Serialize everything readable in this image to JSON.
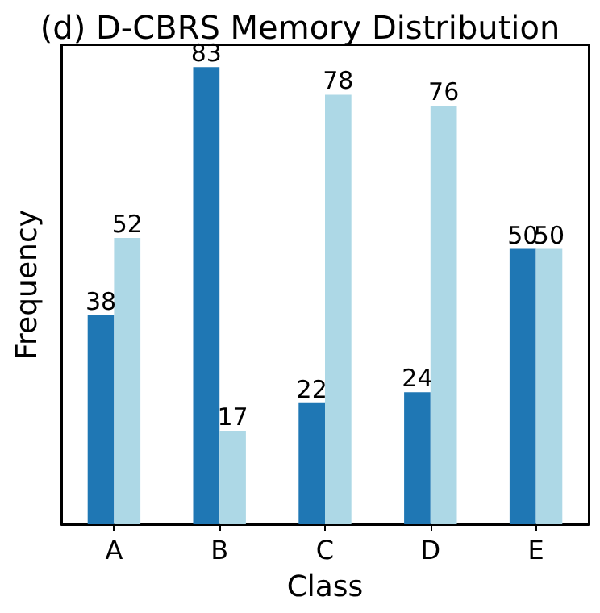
{
  "chart_data": {
    "type": "bar",
    "title": "(d) D-CBRS Memory Distribution",
    "xlabel": "Class",
    "ylabel": "Frequency",
    "categories": [
      "A",
      "B",
      "C",
      "D",
      "E"
    ],
    "series": [
      {
        "color": "#1f77b4",
        "values": [
          38,
          83,
          22,
          24,
          50
        ]
      },
      {
        "color": "#add8e6",
        "values": [
          52,
          17,
          78,
          76,
          50
        ]
      }
    ],
    "ylim": [
      0,
      87
    ],
    "data_labels": true,
    "tick_labels": "x"
  }
}
